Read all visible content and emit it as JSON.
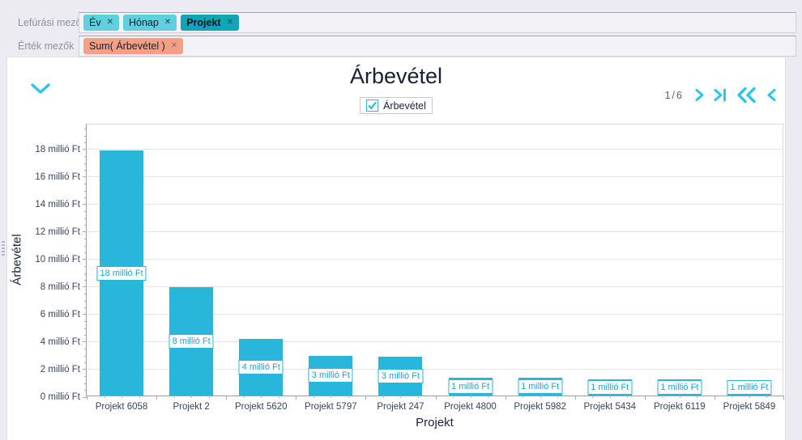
{
  "header": {
    "close_glyph": "✕",
    "rows": [
      {
        "label": "Lefúrási mezők",
        "well": "drilldown-field-well",
        "chips": [
          {
            "text": "Év",
            "variant": "light"
          },
          {
            "text": "Hónap",
            "variant": "light"
          },
          {
            "text": "Projekt",
            "variant": "dark"
          }
        ]
      },
      {
        "label": "Érték mezők",
        "well": "value-field-well",
        "chips": [
          {
            "text": "Sum( Árbevétel )",
            "variant": "salmon"
          }
        ]
      }
    ]
  },
  "pager": {
    "indicator": "1/6"
  },
  "legend": {
    "label": "Árbevétel",
    "checked": true
  },
  "chart_data": {
    "type": "bar",
    "title": "Árbevétel",
    "xlabel": "Projekt",
    "ylabel": "Árbevétel",
    "categories": [
      "Projekt 6058",
      "Projekt 2",
      "Projekt 5620",
      "Projekt 5797",
      "Projekt 247",
      "Projekt 4800",
      "Projekt 5982",
      "Projekt 5434",
      "Projekt 6119",
      "Projekt 5849"
    ],
    "values": [
      17.8,
      7.9,
      4.1,
      2.9,
      2.8,
      1.3,
      1.3,
      1.2,
      1.2,
      1.1
    ],
    "bar_labels": [
      "18 millió Ft",
      "8 millió Ft",
      "4 millió Ft",
      "3 millió Ft",
      "3 millió Ft",
      "1 millió Ft",
      "1 millió Ft",
      "1 millió Ft",
      "1 millió Ft",
      "1 millió Ft"
    ],
    "ytick_labels": [
      "0 millió Ft",
      "2 millió Ft",
      "4 millió Ft",
      "6 millió Ft",
      "8 millió Ft",
      "10 millió Ft",
      "12 millió Ft",
      "14 millió Ft",
      "16 millió Ft",
      "18 millió Ft"
    ],
    "ytick_step": 2,
    "ylim": [
      0,
      19.8
    ],
    "grid": true,
    "legend_position": "top",
    "bar_color": "#28b7da"
  },
  "colors": {
    "accent_cyan": "#28b7da",
    "icon_cyan": "#2cc6ea",
    "chip_light": "#5ed0de",
    "chip_dark": "#0fa6b7",
    "chip_salmon": "#f79f85",
    "page_background": "#ebebf1",
    "title_text": "#181f38",
    "axis_text": "#38445e"
  }
}
